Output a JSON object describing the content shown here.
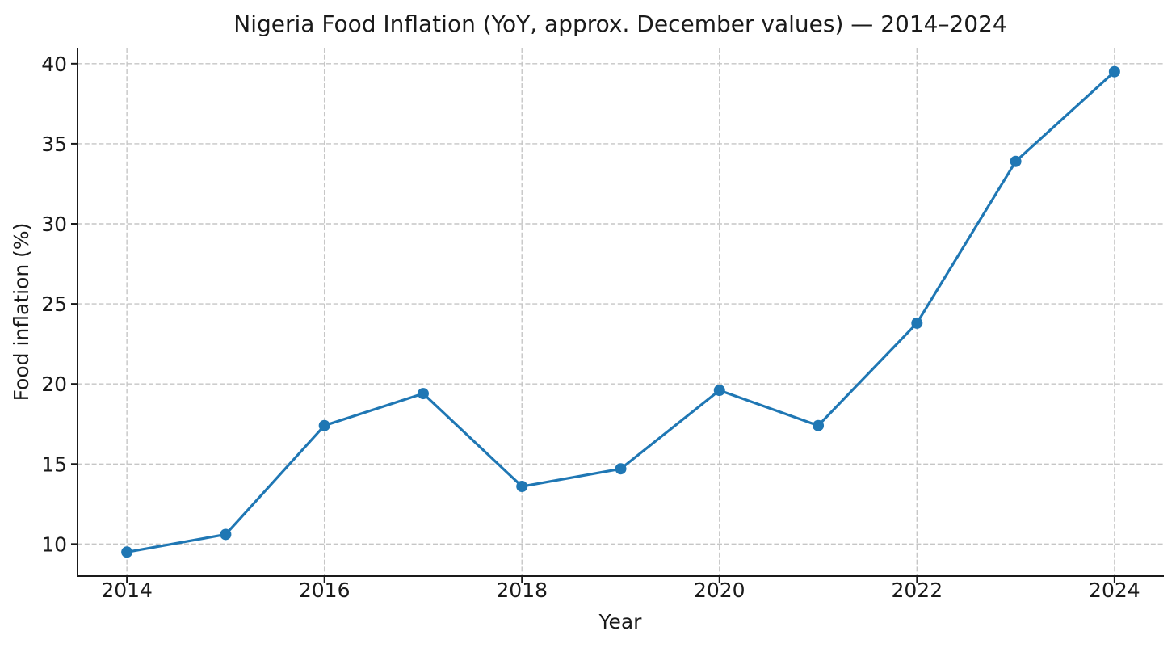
{
  "chart_data": {
    "type": "line",
    "title": "Nigeria Food Inflation (YoY, approx. December values) — 2014–2024",
    "xlabel": "Year",
    "ylabel": "Food inflation (%)",
    "x": [
      2014,
      2015,
      2016,
      2017,
      2018,
      2019,
      2020,
      2021,
      2022,
      2023,
      2024
    ],
    "series": [
      {
        "values": [
          9.5,
          10.6,
          17.4,
          19.4,
          13.6,
          14.7,
          19.6,
          17.4,
          23.8,
          33.9,
          39.5
        ],
        "color": "#1f77b4"
      }
    ],
    "xlim": [
      2013.5,
      2024.5
    ],
    "ylim": [
      8.0,
      41.0
    ],
    "xticks": [
      2014,
      2016,
      2018,
      2020,
      2022,
      2024
    ],
    "yticks": [
      10,
      15,
      20,
      25,
      30,
      35,
      40
    ],
    "grid": true,
    "grid_color": "#c6c6c6",
    "line_color": "#1f77b4",
    "text_color": "#1a1a1a",
    "background": "#ffffff",
    "legend": "none",
    "marker": "circle"
  }
}
